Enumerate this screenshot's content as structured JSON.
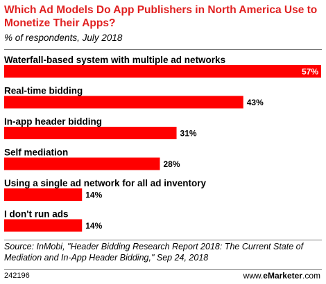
{
  "header": {
    "title": "Which Ad Models Do App Publishers in North America Use to Monetize Their Apps?",
    "subtitle": "% of respondents, July 2018"
  },
  "chart_data": {
    "type": "bar",
    "orientation": "horizontal",
    "title": "Which Ad Models Do App Publishers in North America Use to Monetize Their Apps?",
    "subtitle": "% of respondents, July 2018",
    "categories": [
      "Waterfall-based system with multiple ad networks",
      "Real-time bidding",
      "In-app header bidding",
      "Self mediation",
      "Using a single ad network for all ad inventory",
      "I don't run ads"
    ],
    "values": [
      57,
      43,
      31,
      28,
      14,
      14
    ],
    "value_labels": [
      "57%",
      "43%",
      "31%",
      "28%",
      "14%",
      "14%"
    ],
    "xlim": [
      0,
      57
    ],
    "bar_color": "#ff0000",
    "grid": false,
    "legend": "none"
  },
  "footer": {
    "source": "Source: InMobi, \"Header Bidding Research Report 2018: The Current State of Mediation and In-App Header Bidding,\" Sep 24, 2018",
    "chart_id": "242196",
    "brand_prefix": "www.",
    "brand_e": "e",
    "brand_name": "Marketer",
    "brand_suffix": ".com"
  }
}
